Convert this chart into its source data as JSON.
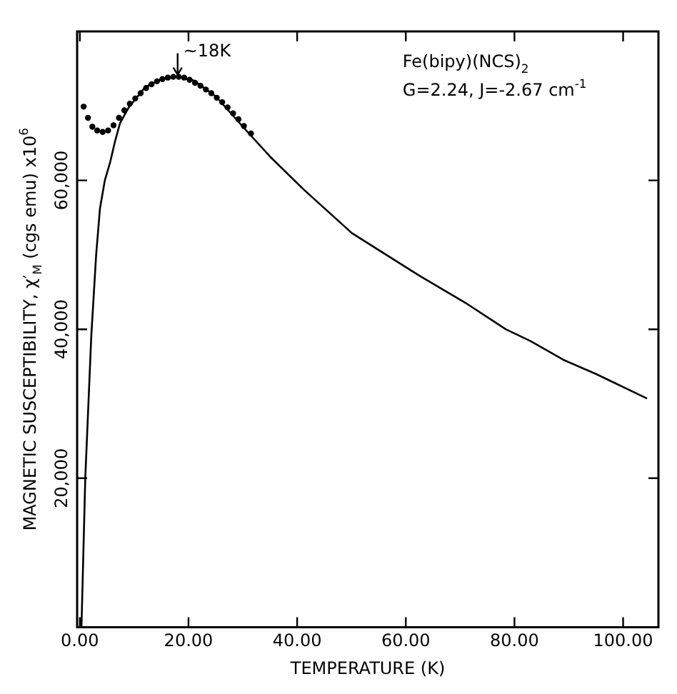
{
  "chart_data": {
    "type": "scatter",
    "xlabel": "TEMPERATURE (K)",
    "ylabel": "MAGNETIC SUSCEPTIBILITY, χ′$_{M}$ (cgs emu) x10$^{6}$",
    "xlim": [
      -0.5,
      106.5
    ],
    "ylim": [
      0,
      80000
    ],
    "xticks": [
      {
        "value": 0,
        "label": "0.00"
      },
      {
        "value": 20,
        "label": "20.00"
      },
      {
        "value": 40,
        "label": "40.00"
      },
      {
        "value": 60,
        "label": "60.00"
      },
      {
        "value": 80,
        "label": "80.00"
      },
      {
        "value": 100,
        "label": "100.00"
      }
    ],
    "yticks": [
      {
        "value": 20000,
        "label": "20,000"
      },
      {
        "value": 40000,
        "label": "40,000"
      },
      {
        "value": 60000,
        "label": "60,000"
      }
    ],
    "grid": false,
    "legend": false,
    "marker": "circle",
    "annotations": [
      {
        "text": "~18K",
        "x": 18,
        "y": 74000
      },
      "Fe(bipy)(NCS)$_{2}$",
      "G=2.24, J=-2.67 cm$^{-1}$"
    ],
    "series": [
      {
        "color": "#000000",
        "x": [
          0.7,
          1.5,
          2.3,
          3.2,
          4.2,
          5.2,
          6.2,
          7.2,
          8.2,
          9.2,
          10.2,
          11.2,
          12.2,
          13.2,
          14.2,
          15.2,
          16.2,
          17.2,
          18.2,
          19.2,
          20.2,
          21.2,
          22.2,
          23.2,
          24.2,
          25.2,
          26.2,
          27.2,
          28.2,
          29.2,
          30.2,
          31.5
        ],
        "values": [
          69900,
          68400,
          67200,
          66700,
          66500,
          66700,
          67400,
          68400,
          69400,
          70300,
          71000,
          71700,
          72400,
          72900,
          73300,
          73600,
          73800,
          73900,
          73900,
          73800,
          73500,
          73100,
          72700,
          72200,
          71700,
          71100,
          70500,
          69800,
          69000,
          68200,
          67300,
          66300
        ]
      },
      {
        "type": "line",
        "color": "#000000",
        "line_style": "solid",
        "marker": "none",
        "x": [
          0.3,
          1.0,
          2.1,
          3.0,
          3.7,
          4.6,
          5.6,
          6.5,
          7.4,
          9.0,
          12.0,
          15.0,
          18.0,
          21.0,
          25.0,
          30.0,
          35.0,
          41.3,
          50.1,
          62.5,
          71.3,
          78.4,
          83.0,
          89.0,
          95.0,
          104.4
        ],
        "values": [
          0,
          20000,
          39000,
          50000,
          56200,
          60000,
          62500,
          65300,
          67700,
          69800,
          72500,
          73600,
          73900,
          73400,
          71300,
          67200,
          63200,
          58700,
          52900,
          47200,
          43400,
          40000,
          38400,
          35900,
          34000,
          30700
        ]
      }
    ]
  }
}
